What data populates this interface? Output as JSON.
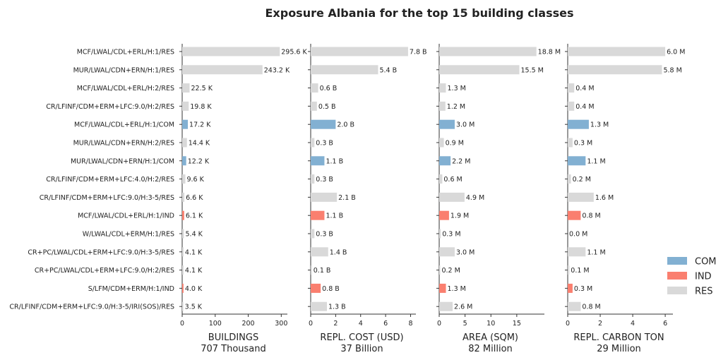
{
  "title": "Exposure Albania for the top 15 building classes",
  "colors": {
    "COM": "#82b0d2",
    "IND": "#fa7f6f",
    "RES": "#d9d9d9"
  },
  "chart_data": {
    "type": "bar",
    "orientation": "horizontal",
    "title": "Exposure Albania for the top 15 building classes",
    "categories": [
      "MCF/LWAL/CDL+ERL/H:1/RES",
      "MUR/LWAL/CDN+ERN/H:1/RES",
      "MCF/LWAL/CDL+ERL/H:2/RES",
      "CR/LFINF/CDM+ERM+LFC:9.0/H:2/RES",
      "MCF/LWAL/CDL+ERL/H:1/COM",
      "MUR/LWAL/CDN+ERN/H:2/RES",
      "MUR/LWAL/CDN+ERN/H:1/COM",
      "CR/LFINF/CDM+ERM+LFC:4.0/H:2/RES",
      "CR/LFINF/CDM+ERM+LFC:9.0/H:3-5/RES",
      "MCF/LWAL/CDL+ERL/H:1/IND",
      "W/LWAL/CDL+ERM/H:1/RES",
      "CR+PC/LWAL/CDL+ERM+LFC:9.0/H:3-5/RES",
      "CR+PC/LWAL/CDL+ERM+LFC:9.0/H:2/RES",
      "S/LFM/CDM+ERM/H:1/IND",
      "CR/LFINF/CDM+ERM+LFC:9.0/H:3-5/IRI(SOS)/RES"
    ],
    "occupancy": [
      "RES",
      "RES",
      "RES",
      "RES",
      "COM",
      "RES",
      "COM",
      "RES",
      "RES",
      "IND",
      "RES",
      "RES",
      "RES",
      "IND",
      "RES"
    ],
    "legend": {
      "position": "right",
      "entries": [
        "COM",
        "IND",
        "RES"
      ]
    },
    "panels": [
      {
        "xlabel": "BUILDINGS",
        "total": "707 Thousand",
        "xlim": [
          0,
          310
        ],
        "ticks": [
          0,
          100,
          200,
          300
        ],
        "tick_labels": [
          "0",
          "100",
          "200",
          "300"
        ],
        "values": [
          295.6,
          243.2,
          22.5,
          19.8,
          17.2,
          14.4,
          12.2,
          9.6,
          6.6,
          6.1,
          5.4,
          4.1,
          4.1,
          4.0,
          3.5
        ],
        "labels": [
          "295.6 K",
          "243.2 K",
          "22.5 K",
          "19.8 K",
          "17.2 K",
          "14.4 K",
          "12.2 K",
          "9.6 K",
          "6.6 K",
          "6.1 K",
          "5.4 K",
          "4.1 K",
          "4.1 K",
          "4.0 K",
          "3.5 K"
        ]
      },
      {
        "xlabel": "REPL. COST (USD)",
        "total": "37 Billion",
        "xlim": [
          0,
          8.2
        ],
        "ticks": [
          0,
          2,
          4,
          6,
          8
        ],
        "tick_labels": [
          "0",
          "2",
          "4",
          "6",
          "8"
        ],
        "values": [
          7.8,
          5.4,
          0.6,
          0.5,
          2.0,
          0.3,
          1.1,
          0.3,
          2.1,
          1.1,
          0.3,
          1.4,
          0.1,
          0.8,
          1.3
        ],
        "labels": [
          "7.8 B",
          "5.4 B",
          "0.6 B",
          "0.5 B",
          "2.0 B",
          "0.3 B",
          "1.1 B",
          "0.3 B",
          "2.1 B",
          "1.1 B",
          "0.3 B",
          "1.4 B",
          "0.1 B",
          "0.8 B",
          "1.3 B"
        ]
      },
      {
        "xlabel": "AREA (SQM)",
        "total": "82 Million",
        "xlim": [
          0,
          19.8
        ],
        "ticks": [
          0,
          5,
          10,
          15
        ],
        "tick_labels": [
          "0",
          "5",
          "10",
          "15"
        ],
        "values": [
          18.8,
          15.5,
          1.3,
          1.2,
          3.0,
          0.9,
          2.2,
          0.6,
          4.9,
          1.9,
          0.3,
          3.0,
          0.2,
          1.3,
          2.6
        ],
        "labels": [
          "18.8 M",
          "15.5 M",
          "1.3 M",
          "1.2 M",
          "3.0 M",
          "0.9 M",
          "2.2 M",
          "0.6 M",
          "4.9 M",
          "1.9 M",
          "0.3 M",
          "3.0 M",
          "0.2 M",
          "1.3 M",
          "2.6 M"
        ]
      },
      {
        "xlabel": "REPL. CARBON TON",
        "total": "29 Million",
        "xlim": [
          0,
          6.3
        ],
        "ticks": [
          0,
          2,
          4,
          6
        ],
        "tick_labels": [
          "0",
          "2",
          "4",
          "6"
        ],
        "values": [
          6.0,
          5.8,
          0.4,
          0.4,
          1.3,
          0.3,
          1.1,
          0.2,
          1.6,
          0.8,
          0.0,
          1.1,
          0.1,
          0.3,
          0.8
        ],
        "labels": [
          "6.0 M",
          "5.8 M",
          "0.4 M",
          "0.4 M",
          "1.3 M",
          "0.3 M",
          "1.1 M",
          "0.2 M",
          "1.6 M",
          "0.8 M",
          "0.0 M",
          "1.1 M",
          "0.1 M",
          "0.3 M",
          "0.8 M"
        ]
      }
    ]
  }
}
